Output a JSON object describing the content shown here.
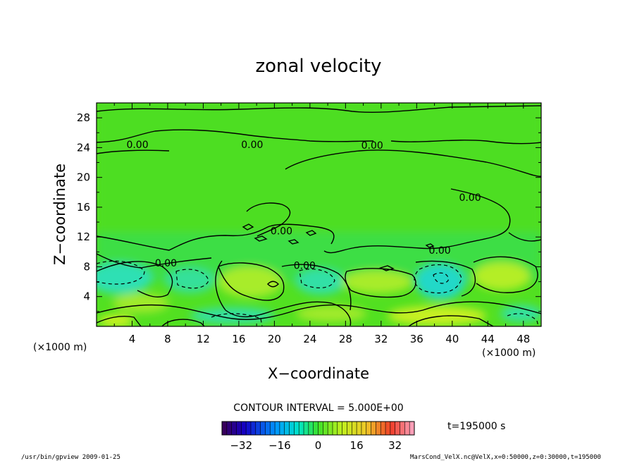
{
  "chart_data": {
    "type": "heatmap",
    "title": "zonal velocity",
    "xlabel": "X−coordinate",
    "ylabel": "Z−coordinate",
    "x_unit": "(×1000 m)",
    "y_unit": "(×1000 m)",
    "xlim": [
      0,
      50
    ],
    "ylim": [
      0,
      30
    ],
    "x_ticks": [
      4,
      8,
      12,
      16,
      20,
      24,
      28,
      32,
      36,
      40,
      44,
      48
    ],
    "y_ticks": [
      4,
      8,
      12,
      16,
      20,
      24,
      28
    ],
    "contour_interval_text": "CONTOUR INTERVAL = 5.000E+00",
    "time_text": "t=195000 s",
    "colorbar": {
      "min": -40,
      "max": 40,
      "ticks": [
        -32,
        -16,
        0,
        16,
        32
      ]
    },
    "contour_labels": [
      {
        "text": "0.00",
        "x": 4.6,
        "y": 24.4
      },
      {
        "text": "0.00",
        "x": 17.5,
        "y": 24.4
      },
      {
        "text": "0.00",
        "x": 31.0,
        "y": 24.3
      },
      {
        "text": "0.00",
        "x": 42.0,
        "y": 17.3
      },
      {
        "text": "0.00",
        "x": 20.8,
        "y": 12.8
      },
      {
        "text": "0.00",
        "x": 38.6,
        "y": 10.2
      },
      {
        "text": "0.00",
        "x": 7.8,
        "y": 8.5
      },
      {
        "text": "0.00",
        "x": 23.4,
        "y": 8.2
      }
    ],
    "footer_left": "/usr/bin/gpview  2009-01-25",
    "footer_right": "MarsCond_VelX.nc@VelX,x=0:50000,z=0:30000,t=195000",
    "colors": {
      "background_field": "#52e021",
      "positive": "#c8f024",
      "negative": "#2fe0b4"
    }
  }
}
